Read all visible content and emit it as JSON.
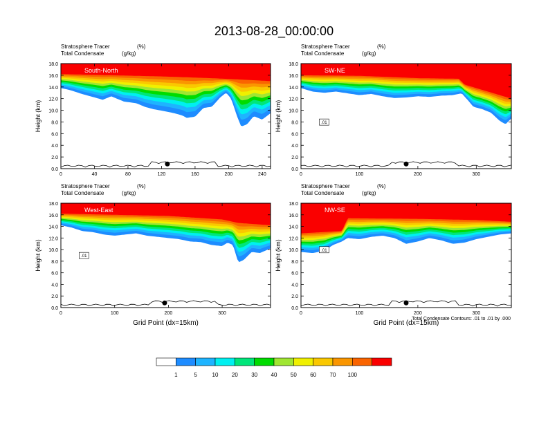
{
  "figure": {
    "title": "2013-08-28_00:00:00",
    "contour_note": "Total Condensate Contours: .01 to .01 by .000"
  },
  "chart_data": {
    "type": "heatmap",
    "shared": {
      "ylabel": "Height (km)",
      "xlabel": "Grid Point (dx=15km)",
      "left_title_line1": "Stratosphere Tracer",
      "left_title_line1_unit": "(%)",
      "left_title_line2": "Total Condensate",
      "left_title_line2_unit": "(g/kg)",
      "ylim": [
        0,
        18
      ],
      "yticks": [
        "0.0",
        "2.0",
        "4.0",
        "6.0",
        "8.0",
        "10.0",
        "12.0",
        "14.0",
        "16.0",
        "18.0"
      ],
      "contour_label": ".01"
    },
    "panels": [
      {
        "name": "South-North",
        "xlim": [
          0,
          250
        ],
        "xticks": [
          0,
          40,
          80,
          120,
          160,
          200,
          240
        ],
        "show_xlabel": false,
        "surface_marker_x": 127,
        "tracer_bottom_km": [
          [
            0,
            13.8
          ],
          [
            10,
            13.5
          ],
          [
            25,
            12.8
          ],
          [
            40,
            12.2
          ],
          [
            50,
            11.8
          ],
          [
            60,
            12.4
          ],
          [
            75,
            11.5
          ],
          [
            90,
            11.2
          ],
          [
            100,
            10.6
          ],
          [
            110,
            10.2
          ],
          [
            125,
            9.8
          ],
          [
            135,
            9.5
          ],
          [
            145,
            9.1
          ],
          [
            150,
            8.7
          ],
          [
            160,
            8.9
          ],
          [
            170,
            10.4
          ],
          [
            180,
            10.6
          ],
          [
            190,
            12.2
          ],
          [
            197,
            13.0
          ],
          [
            203,
            12.0
          ],
          [
            210,
            9.0
          ],
          [
            215,
            7.2
          ],
          [
            222,
            7.6
          ],
          [
            230,
            9.0
          ],
          [
            240,
            8.4
          ],
          [
            250,
            9.5
          ]
        ],
        "tracer_top_km": [
          [
            0,
            16.2
          ],
          [
            60,
            16.0
          ],
          [
            120,
            15.8
          ],
          [
            180,
            15.5
          ],
          [
            210,
            15.3
          ],
          [
            250,
            15.0
          ]
        ]
      },
      {
        "name": "SW-NE",
        "xlim": [
          0,
          360
        ],
        "xticks": [
          0,
          100,
          200,
          300
        ],
        "show_xlabel": false,
        "surface_marker_x": 180,
        "tracer_bottom_km": [
          [
            0,
            13.8
          ],
          [
            20,
            13.2
          ],
          [
            40,
            13.0
          ],
          [
            60,
            13.2
          ],
          [
            80,
            12.9
          ],
          [
            100,
            12.6
          ],
          [
            120,
            12.8
          ],
          [
            140,
            12.4
          ],
          [
            160,
            12.1
          ],
          [
            180,
            12.2
          ],
          [
            200,
            12.4
          ],
          [
            220,
            12.3
          ],
          [
            240,
            12.5
          ],
          [
            260,
            12.6
          ],
          [
            275,
            12.9
          ],
          [
            285,
            11.8
          ],
          [
            295,
            10.6
          ],
          [
            310,
            10.2
          ],
          [
            325,
            9.6
          ],
          [
            340,
            8.2
          ],
          [
            350,
            7.6
          ],
          [
            360,
            8.6
          ]
        ],
        "tracer_top_km": [
          [
            0,
            16.0
          ],
          [
            100,
            15.9
          ],
          [
            200,
            15.5
          ],
          [
            270,
            15.4
          ],
          [
            280,
            14.4
          ],
          [
            360,
            12.0
          ]
        ]
      },
      {
        "name": "West-East",
        "xlim": [
          0,
          390
        ],
        "xticks": [
          0,
          100,
          200,
          300
        ],
        "show_xlabel": true,
        "surface_marker_x": 193,
        "tracer_bottom_km": [
          [
            0,
            14.2
          ],
          [
            20,
            13.8
          ],
          [
            40,
            13.2
          ],
          [
            60,
            13.0
          ],
          [
            80,
            12.6
          ],
          [
            100,
            12.4
          ],
          [
            120,
            12.6
          ],
          [
            140,
            12.8
          ],
          [
            160,
            12.4
          ],
          [
            180,
            12.2
          ],
          [
            200,
            12.0
          ],
          [
            220,
            11.8
          ],
          [
            240,
            11.4
          ],
          [
            260,
            11.3
          ],
          [
            280,
            10.8
          ],
          [
            300,
            10.6
          ],
          [
            310,
            11.2
          ],
          [
            320,
            10.8
          ],
          [
            330,
            7.8
          ],
          [
            340,
            8.2
          ],
          [
            355,
            9.6
          ],
          [
            370,
            9.4
          ],
          [
            390,
            10.2
          ]
        ],
        "tracer_top_km": [
          [
            0,
            16.2
          ],
          [
            100,
            16.0
          ],
          [
            200,
            15.8
          ],
          [
            300,
            15.2
          ],
          [
            330,
            14.6
          ],
          [
            390,
            14.2
          ]
        ]
      },
      {
        "name": "NW-SE",
        "xlim": [
          0,
          360
        ],
        "xticks": [
          0,
          100,
          200,
          300
        ],
        "show_xlabel": true,
        "surface_marker_x": 180,
        "tracer_bottom_km": [
          [
            0,
            9.6
          ],
          [
            20,
            9.4
          ],
          [
            40,
            9.8
          ],
          [
            55,
            10.8
          ],
          [
            70,
            11.4
          ],
          [
            80,
            12.0
          ],
          [
            100,
            11.8
          ],
          [
            120,
            12.2
          ],
          [
            140,
            12.4
          ],
          [
            160,
            12.0
          ],
          [
            180,
            11.0
          ],
          [
            200,
            11.4
          ],
          [
            220,
            12.0
          ],
          [
            240,
            11.6
          ],
          [
            260,
            11.0
          ],
          [
            280,
            11.2
          ],
          [
            300,
            11.8
          ],
          [
            320,
            12.2
          ],
          [
            340,
            12.6
          ],
          [
            360,
            12.8
          ]
        ],
        "tracer_top_km": [
          [
            0,
            12.8
          ],
          [
            70,
            13.2
          ],
          [
            80,
            15.4
          ],
          [
            200,
            15.3
          ],
          [
            300,
            15.1
          ],
          [
            360,
            14.8
          ]
        ]
      }
    ],
    "colorbar": {
      "labels": [
        "1",
        "5",
        "10",
        "20",
        "30",
        "40",
        "50",
        "60",
        "70",
        "100"
      ],
      "colors": [
        "#ffffff",
        "#1e8cff",
        "#1eb4ff",
        "#00f0f0",
        "#00e67a",
        "#00dc00",
        "#a0e632",
        "#f0f000",
        "#fac800",
        "#fa9600",
        "#fa6400",
        "#fa0000"
      ]
    }
  }
}
